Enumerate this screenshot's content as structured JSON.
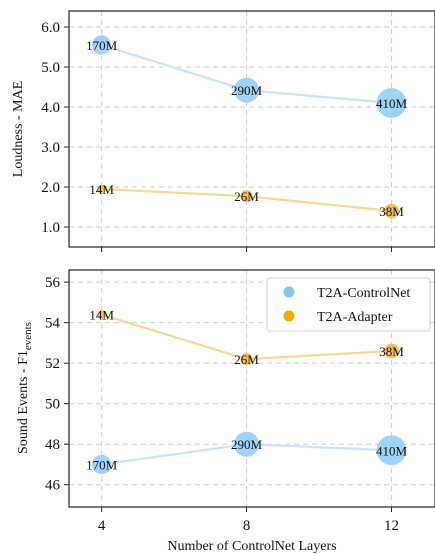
{
  "chart_data": [
    {
      "type": "scatter",
      "ylabel": "Loudness - MAE",
      "xlabel": "",
      "x": [
        4,
        8,
        12
      ],
      "x_ticks": [
        "4",
        "8",
        "12"
      ],
      "ylim": [
        0.5,
        6.4
      ],
      "y_ticks": [
        "1.0",
        "2.0",
        "3.0",
        "4.0",
        "5.0",
        "6.0"
      ],
      "y_tick_values": [
        1.0,
        2.0,
        3.0,
        4.0,
        5.0,
        6.0
      ],
      "grid": true,
      "series": [
        {
          "name": "T2A-ControlNet",
          "values": [
            5.55,
            4.42,
            4.1
          ],
          "labels": [
            "170M",
            "290M",
            "410M"
          ],
          "params_m": [
            170,
            290,
            410
          ],
          "color": "#9fd3f7",
          "line_color": "#c9e6f8"
        },
        {
          "name": "T2A-Adapter",
          "values": [
            1.95,
            1.77,
            1.4
          ],
          "labels": [
            "14M",
            "26M",
            "38M"
          ],
          "params_m": [
            14,
            26,
            38
          ],
          "color": "#f6c15a",
          "line_color": "#f8d78e"
        }
      ]
    },
    {
      "type": "scatter",
      "ylabel": "Sound Events - F1",
      "ylabel_sub": "events",
      "xlabel": "Number of ControlNet Layers",
      "x": [
        4,
        8,
        12
      ],
      "x_ticks": [
        "4",
        "8",
        "12"
      ],
      "ylim": [
        44.9,
        56.6
      ],
      "y_ticks": [
        "46",
        "48",
        "50",
        "52",
        "54",
        "56"
      ],
      "y_tick_values": [
        46,
        48,
        50,
        52,
        54,
        56
      ],
      "grid": true,
      "legend": "top-right",
      "series": [
        {
          "name": "T2A-ControlNet",
          "values": [
            47.0,
            48.0,
            47.7
          ],
          "labels": [
            "170M",
            "290M",
            "410M"
          ],
          "params_m": [
            170,
            290,
            410
          ],
          "color": "#9fd3f7",
          "line_color": "#c9e6f8"
        },
        {
          "name": "T2A-Adapter",
          "values": [
            54.4,
            52.2,
            52.6
          ],
          "labels": [
            "14M",
            "26M",
            "38M"
          ],
          "params_m": [
            14,
            26,
            38
          ],
          "color": "#f6c15a",
          "line_color": "#f8d78e"
        }
      ]
    }
  ],
  "legend": {
    "items": [
      {
        "label": "T2A-ControlNet",
        "color": "#87c7f0"
      },
      {
        "label": "T2A-Adapter",
        "color": "#f5a70a"
      }
    ]
  }
}
